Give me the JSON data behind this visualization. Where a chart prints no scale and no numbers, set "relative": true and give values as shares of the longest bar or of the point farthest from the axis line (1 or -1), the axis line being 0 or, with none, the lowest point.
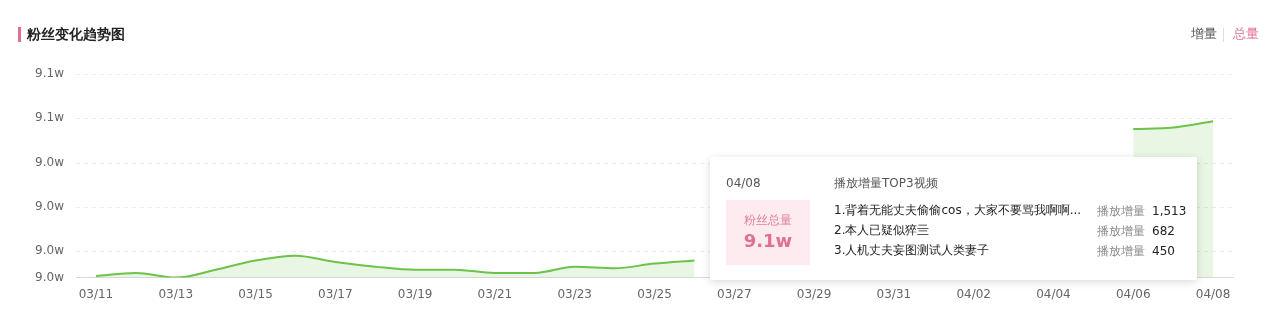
{
  "chart_data": {
    "type": "area",
    "title": "粉丝变化趋势图",
    "relative": true,
    "categories": [
      "03/11",
      null,
      "03/13",
      null,
      "03/15",
      null,
      "03/17",
      null,
      "03/19",
      null,
      "03/21",
      null,
      "03/23",
      null,
      "03/25",
      null,
      "03/27",
      null,
      "03/29",
      null,
      "03/31",
      null,
      "04/02",
      null,
      "04/04",
      null,
      "04/06",
      null,
      "04/08"
    ],
    "series": [
      {
        "color": "#6cc24a",
        "values": [
          0.01,
          0.03,
          0,
          0.05,
          0.11,
          0.14,
          0.1,
          0.07,
          0.05,
          0.05,
          0.03,
          0.03,
          0.07,
          0.06,
          0.09,
          0.11,
          null,
          null,
          null,
          null,
          null,
          null,
          null,
          null,
          null,
          null,
          0.95,
          0.96,
          1
        ]
      }
    ],
    "grid": "y",
    "marker": "none",
    "annotations": [
      "增量",
      "总量",
      "04/08",
      "播放增量TOP3视频",
      "粉丝总量",
      "9.1w",
      "1.背着无能丈夫偷偷cos，大家不要骂我啊啊...",
      "播放增量",
      "1,513",
      "2.本人已疑似猝亖",
      "播放增量",
      "682",
      "3.人机丈夫妄图测试人类妻子",
      "播放增量",
      "450",
      "9.1w",
      "9.1w",
      "9.0w",
      "9.0w",
      "9.0w",
      "9.0w"
    ]
  }
}
